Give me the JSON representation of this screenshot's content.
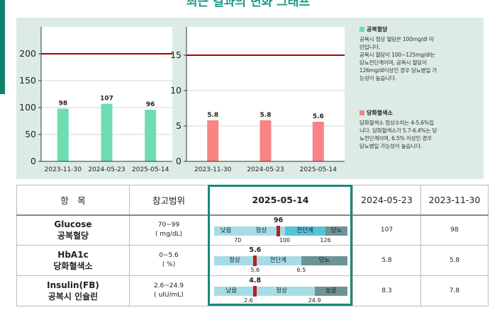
{
  "page_title": "최근 결과의 변화 그래프",
  "colors": {
    "green": "#6fddb1",
    "red": "#fa8384",
    "teal": "#11806f",
    "refline": "#b00000"
  },
  "chart_data": [
    {
      "type": "bar",
      "title": "공복혈당",
      "categories": [
        "2023-11-30",
        "2024-05-23",
        "2025-05-14"
      ],
      "values": [
        98,
        107,
        96
      ],
      "ylim": [
        0,
        250
      ],
      "yticks": [
        0,
        50,
        100,
        150,
        200
      ],
      "reference_line": 200,
      "color": "#6fddb1"
    },
    {
      "type": "bar",
      "title": "당화혈색소",
      "categories": [
        "2023-11-30",
        "2024-05-23",
        "2025-05-14"
      ],
      "values": [
        5.8,
        5.8,
        5.6
      ],
      "ylim": [
        0,
        19
      ],
      "yticks": [
        0,
        5,
        10,
        15
      ],
      "reference_line": 15,
      "color": "#fa8384"
    }
  ],
  "notes": {
    "glucose": {
      "title": "공복혈당",
      "lines": [
        "공복시 정상 혈당은 100mg/dl 미",
        "만입니다.",
        "공복시 혈당이 100~125mg/dl는",
        "당뇨전단계이며, 공복시 혈당이",
        "126mg/dl이상인 경우 당뇨병일 가",
        "능성이 높습니다."
      ]
    },
    "hba1c": {
      "title": "당화혈색소",
      "lines": [
        "당화혈색소 정상수치는 4-5.6%입",
        "니다. 당화혈색소가 5.7-6.4%는 당",
        "뇨전단계이며, 6.5% 이상인 경우",
        "당뇨병일 가능성이 높습니다."
      ]
    }
  },
  "table": {
    "headers": {
      "item": "항　목",
      "ref": "참고범위",
      "current": "2025-05-14",
      "prev1": "2024-05-23",
      "prev2": "2023-11-30"
    },
    "rows": [
      {
        "name_en": "Glucose",
        "name_ko": "공복혈당",
        "ref_range": "70~99",
        "ref_unit": "( mg/dL)",
        "current": 96,
        "current_label": "96",
        "prev1": "107",
        "prev2": "98",
        "scale_min": 55,
        "scale_max": 140,
        "segments": [
          {
            "label": "낮음",
            "from": 55,
            "to": 70,
            "color": "#a6dce6"
          },
          {
            "label": "정상",
            "from": 70,
            "to": 100,
            "color": "#a6dce6"
          },
          {
            "label": "전단계",
            "from": 100,
            "to": 126,
            "color": "#56c3d7"
          },
          {
            "label": "당뇨",
            "from": 126,
            "to": 140,
            "color": "#6e9394"
          }
        ],
        "ticks": [
          {
            "label": "70",
            "v": 70
          },
          {
            "label": "100",
            "v": 100
          },
          {
            "label": "126",
            "v": 126
          }
        ]
      },
      {
        "name_en": "HbA1c",
        "name_ko": "당화혈색소",
        "ref_range": "0~5.6",
        "ref_unit": "( %)",
        "current": 5.6,
        "current_label": "5.6",
        "prev1": "5.8",
        "prev2": "5.8",
        "scale_min": 4.8,
        "scale_max": 7.4,
        "segments": [
          {
            "label": "정상",
            "from": 4.8,
            "to": 5.6,
            "color": "#a6dce6"
          },
          {
            "label": "전단계",
            "from": 5.6,
            "to": 6.5,
            "color": "#a6dce6"
          },
          {
            "label": "당뇨",
            "from": 6.5,
            "to": 7.4,
            "color": "#6e9394"
          }
        ],
        "ticks": [
          {
            "label": "5.6",
            "v": 5.6
          },
          {
            "label": "6.5",
            "v": 6.5
          }
        ]
      },
      {
        "name_en": "Insulin(FB)",
        "name_ko": "공복시 인슐린",
        "ref_range": "2.6~24.9",
        "ref_unit": "( uIU/mL)",
        "current": 4.8,
        "current_label": "4.8",
        "prev1": "8.3",
        "prev2": "7.8",
        "scale_min": -9,
        "scale_max": 36,
        "segments": [
          {
            "label": "낮음",
            "from": -9,
            "to": 2.6,
            "color": "#a6dce6"
          },
          {
            "label": "정상",
            "from": 2.6,
            "to": 24.9,
            "color": "#a6dce6"
          },
          {
            "label": "높음",
            "from": 24.9,
            "to": 36,
            "color": "#6e9394"
          }
        ],
        "ticks": [
          {
            "label": "2.6",
            "v": 2.6
          },
          {
            "label": "24.9",
            "v": 24.9
          }
        ]
      }
    ]
  }
}
